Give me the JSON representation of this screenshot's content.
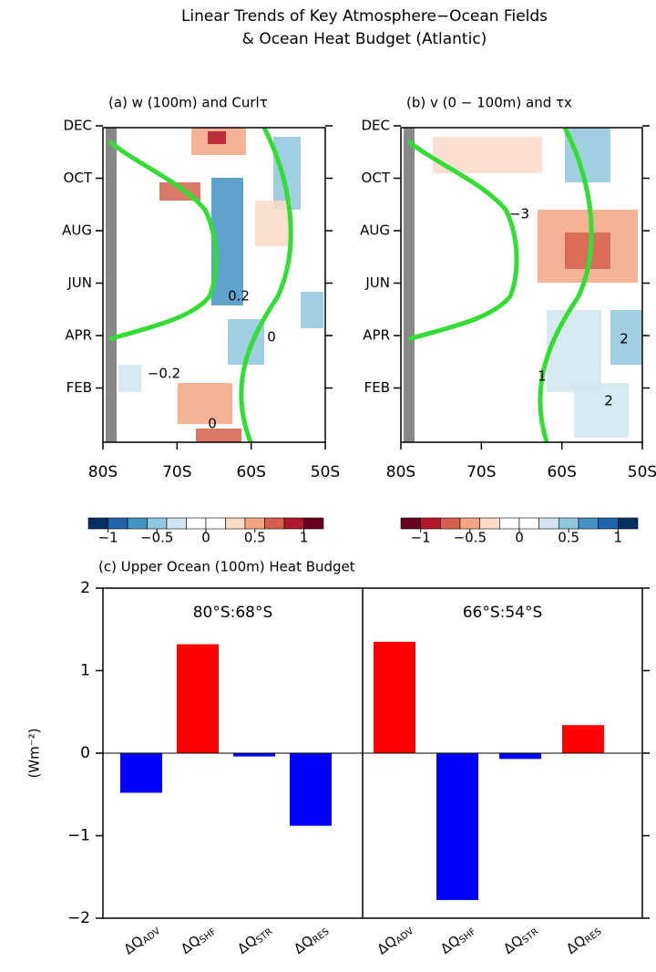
{
  "title_lines": [
    "Linear Trends of Key Atmosphere−Ocean Fields",
    "& Ocean Heat Budget (Atlantic)"
  ],
  "chart_data": [
    {
      "type": "contour",
      "title": "(a) w (100m) and Curlτ",
      "xlim": [
        -80,
        -50
      ],
      "xticks": [
        {
          "value": -80,
          "label": "80S"
        },
        {
          "value": -70,
          "label": "70S"
        },
        {
          "value": -60,
          "label": "60S"
        },
        {
          "value": -50,
          "label": "50S"
        }
      ],
      "y_categories": [
        "FEB",
        "APR",
        "JUN",
        "AUG",
        "OCT",
        "DEC"
      ],
      "contour_labels": [
        "0.2",
        "0",
        "−0.2",
        "0"
      ],
      "colorbar_lim": [
        -1.2,
        1.2
      ],
      "colorbar_ticks": [
        {
          "value": -1,
          "label": "−1"
        },
        {
          "value": -0.5,
          "label": "−0.5"
        },
        0,
        0.5,
        1
      ],
      "colorbar_colors": [
        "#053061",
        "#2166ac",
        "#4393c3",
        "#92c5de",
        "#d1e5f0",
        "#ffffff",
        "#ffffff",
        "#fddbc7",
        "#f4a582",
        "#d6604d",
        "#b2182b",
        "#67001f"
      ]
    },
    {
      "type": "contour",
      "title": "(b) v (0 − 100m) and τx",
      "xlim": [
        -80,
        -50
      ],
      "xticks": [
        {
          "value": -80,
          "label": "80S"
        },
        {
          "value": -70,
          "label": "70S"
        },
        {
          "value": -60,
          "label": "60S"
        },
        {
          "value": -50,
          "label": "50S"
        }
      ],
      "y_categories": [
        "FEB",
        "APR",
        "JUN",
        "AUG",
        "OCT",
        "DEC"
      ],
      "contour_labels": [
        "−3",
        "2",
        "1",
        "2"
      ],
      "colorbar_lim": [
        -1.2,
        1.2
      ],
      "colorbar_ticks": [
        {
          "value": -1,
          "label": "−1"
        },
        {
          "value": -0.5,
          "label": "−0.5"
        },
        0,
        0.5,
        1
      ],
      "colorbar_colors": [
        "#67001f",
        "#b2182b",
        "#d6604d",
        "#f4a582",
        "#fddbc7",
        "#ffffff",
        "#ffffff",
        "#d1e5f0",
        "#92c5de",
        "#4393c3",
        "#2166ac",
        "#053061"
      ]
    },
    {
      "type": "bar",
      "title": "(c) Upper Ocean (100m) Heat Budget",
      "ylabel": "(Wm⁻²)",
      "ylim": [
        -2,
        2
      ],
      "yticks": [
        {
          "value": -2,
          "label": "−2"
        },
        {
          "value": -1,
          "label": "−1"
        },
        0,
        1,
        2
      ],
      "categories": [
        {
          "symbol": "ΔQ",
          "subscript": "ADV"
        },
        {
          "symbol": "ΔQ",
          "subscript": "SHF"
        },
        {
          "symbol": "ΔQ",
          "subscript": "STR"
        },
        {
          "symbol": "ΔQ",
          "subscript": "RES"
        }
      ],
      "positive_color": "#ff0000",
      "negative_color": "#0000ff",
      "panels": [
        {
          "title": "80°S:68°S",
          "values": [
            -0.48,
            1.32,
            -0.04,
            -0.88
          ]
        },
        {
          "title": "66°S:54°S",
          "values": [
            1.35,
            -1.78,
            -0.07,
            0.34
          ]
        }
      ]
    }
  ]
}
